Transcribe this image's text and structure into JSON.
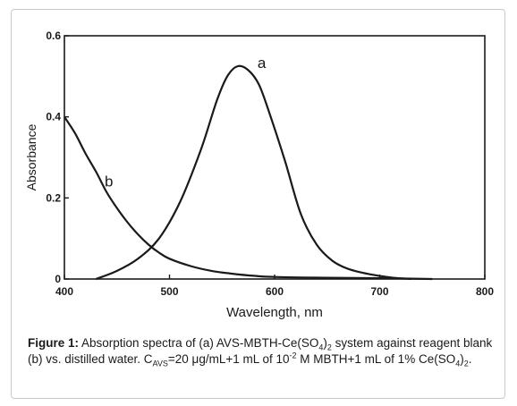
{
  "chart_data": {
    "type": "line",
    "xlabel": "Wavelength, nm",
    "ylabel": "Absorbance",
    "xlim": [
      400,
      800
    ],
    "ylim": [
      0,
      0.6
    ],
    "x_ticks": [
      "400",
      "500",
      "600",
      "700",
      "800"
    ],
    "y_ticks": [
      "0",
      "0.2",
      "0.4",
      "0.6"
    ],
    "series": [
      {
        "name": "a",
        "color": "#1a1a1a",
        "x": [
          430,
          450,
          470,
          490,
          510,
          530,
          545,
          555,
          565,
          575,
          585,
          595,
          610,
          625,
          640,
          655,
          670,
          690,
          710,
          730
        ],
        "y": [
          0.0,
          0.02,
          0.05,
          0.1,
          0.19,
          0.32,
          0.44,
          0.5,
          0.525,
          0.515,
          0.48,
          0.41,
          0.29,
          0.16,
          0.085,
          0.045,
          0.025,
          0.012,
          0.004,
          0.0
        ]
      },
      {
        "name": "b",
        "color": "#1a1a1a",
        "x": [
          400,
          410,
          420,
          430,
          440,
          450,
          460,
          470,
          480,
          490,
          500,
          520,
          540,
          560,
          580,
          600,
          650,
          700,
          750
        ],
        "y": [
          0.4,
          0.36,
          0.31,
          0.265,
          0.215,
          0.175,
          0.14,
          0.11,
          0.085,
          0.065,
          0.05,
          0.032,
          0.02,
          0.013,
          0.008,
          0.005,
          0.003,
          0.002,
          0.0
        ]
      }
    ]
  },
  "caption": {
    "figure_label": "Figure 1:",
    "text_1": " Absorption spectra of (a) AVS-MBTH-Ce(SO",
    "sub_1": "4",
    "text_2": ")",
    "sub_2": "2",
    "text_3": " system against reagent blank (b) vs. distilled water. C",
    "sub_3": "AVS",
    "text_4": "=20 μg/mL+1 mL of 10",
    "sup_1": "-2",
    "text_5": " M MBTH+1 mL of 1% Ce(SO",
    "sub_4": "4",
    "text_6": ")",
    "sub_5": "2",
    "text_7": "."
  }
}
